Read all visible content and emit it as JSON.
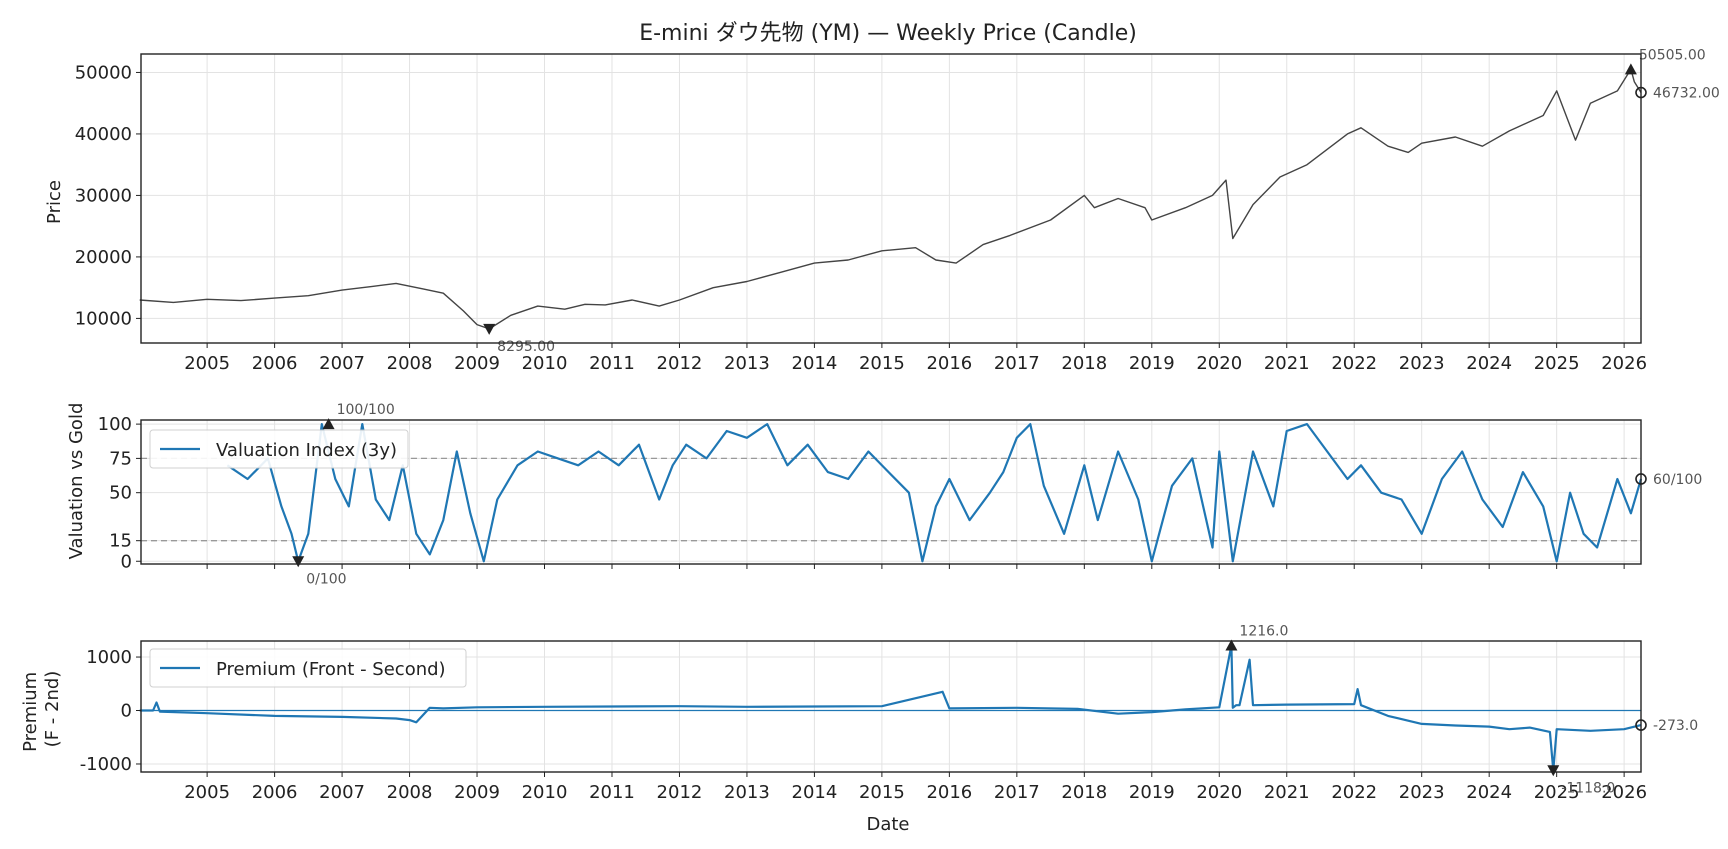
{
  "chart_data": [
    {
      "type": "line",
      "title": "E-mini ダウ先物 (YM) — Weekly Price (Candle)",
      "xlabel": "",
      "ylabel": "Price",
      "xlim": [
        2004.02,
        2026.25
      ],
      "ylim": [
        6000,
        53000
      ],
      "yticks": [
        10000,
        20000,
        30000,
        40000,
        50000
      ],
      "xticks": [
        "2005",
        "2006",
        "2007",
        "2008",
        "2009",
        "2010",
        "2011",
        "2012",
        "2013",
        "2014",
        "2015",
        "2016",
        "2017",
        "2018",
        "2019",
        "2020",
        "2021",
        "2022",
        "2023",
        "2024",
        "2025",
        "2026"
      ],
      "grid": true,
      "series": [
        {
          "color": "#444444",
          "x": [
            2004.0,
            2004.5,
            2005.0,
            2005.5,
            2006.0,
            2006.5,
            2007.0,
            2007.45,
            2007.8,
            2008.2,
            2008.5,
            2008.8,
            2009.0,
            2009.18,
            2009.5,
            2009.9,
            2010.3,
            2010.6,
            2010.9,
            2011.3,
            2011.7,
            2012.0,
            2012.5,
            2013.0,
            2013.5,
            2014.0,
            2014.5,
            2015.0,
            2015.5,
            2015.8,
            2016.1,
            2016.5,
            2016.9,
            2017.5,
            2018.0,
            2018.15,
            2018.5,
            2018.9,
            2019.0,
            2019.5,
            2019.9,
            2020.1,
            2020.2,
            2020.5,
            2020.9,
            2021.3,
            2021.9,
            2022.1,
            2022.5,
            2022.8,
            2023.0,
            2023.5,
            2023.9,
            2024.3,
            2024.8,
            2025.0,
            2025.28,
            2025.5,
            2025.9,
            2026.1,
            2026.15,
            2026.25
          ],
          "y": [
            13000,
            12600,
            13100,
            12900,
            13300,
            13700,
            14600,
            15200,
            15700,
            14800,
            14100,
            11200,
            9000,
            8295,
            10500,
            12000,
            11500,
            12300,
            12200,
            13000,
            12000,
            13000,
            15000,
            16000,
            17500,
            19000,
            19500,
            21000,
            21500,
            19500,
            19000,
            22000,
            23500,
            26000,
            30000,
            28000,
            29500,
            28000,
            26000,
            28000,
            30000,
            32500,
            23000,
            28500,
            33000,
            35000,
            40000,
            41000,
            38000,
            37000,
            38500,
            39500,
            38000,
            40500,
            43000,
            47000,
            39000,
            45000,
            47000,
            50505,
            48500,
            46732
          ]
        }
      ],
      "annotations": [
        {
          "label": "50505.00",
          "x": 2026.1,
          "y": 50505,
          "marker": "max"
        },
        {
          "label": "46732.00",
          "x": 2026.25,
          "y": 46732,
          "marker": "last"
        },
        {
          "label": "8295.00",
          "x": 2009.18,
          "y": 8295,
          "marker": "min"
        }
      ]
    },
    {
      "type": "line",
      "ylabel": "Valuation vs Gold",
      "xlim": [
        2004.02,
        2026.25
      ],
      "ylim": [
        -2,
        103
      ],
      "yticks": [
        0,
        15,
        50,
        75,
        100
      ],
      "reference_lines": [
        75,
        15
      ],
      "grid": true,
      "legend": "upper-left",
      "series": [
        {
          "name": "Valuation Index (3y)",
          "color": "#1f77b4",
          "x": [
            2005.3,
            2005.6,
            2005.9,
            2006.1,
            2006.25,
            2006.35,
            2006.5,
            2006.7,
            2006.9,
            2007.1,
            2007.3,
            2007.5,
            2007.7,
            2007.9,
            2008.1,
            2008.3,
            2008.5,
            2008.7,
            2008.9,
            2009.1,
            2009.3,
            2009.6,
            2009.9,
            2010.2,
            2010.5,
            2010.8,
            2011.1,
            2011.4,
            2011.7,
            2011.9,
            2012.1,
            2012.4,
            2012.7,
            2013.0,
            2013.3,
            2013.6,
            2013.9,
            2014.2,
            2014.5,
            2014.8,
            2015.1,
            2015.4,
            2015.6,
            2015.8,
            2016.0,
            2016.3,
            2016.6,
            2016.8,
            2017.0,
            2017.2,
            2017.4,
            2017.7,
            2018.0,
            2018.2,
            2018.5,
            2018.8,
            2019.0,
            2019.3,
            2019.6,
            2019.9,
            2020.0,
            2020.2,
            2020.5,
            2020.8,
            2021.0,
            2021.3,
            2021.6,
            2021.9,
            2022.1,
            2022.4,
            2022.7,
            2023.0,
            2023.3,
            2023.6,
            2023.9,
            2024.2,
            2024.5,
            2024.8,
            2025.0,
            2025.2,
            2025.4,
            2025.6,
            2025.9,
            2026.1,
            2026.25
          ],
          "y": [
            70,
            60,
            75,
            40,
            20,
            0,
            20,
            100,
            60,
            40,
            100,
            45,
            30,
            70,
            20,
            5,
            30,
            80,
            35,
            0,
            45,
            70,
            80,
            75,
            70,
            80,
            70,
            85,
            45,
            70,
            85,
            75,
            95,
            90,
            100,
            70,
            85,
            65,
            60,
            80,
            65,
            50,
            0,
            40,
            60,
            30,
            50,
            65,
            90,
            100,
            55,
            20,
            70,
            30,
            80,
            45,
            0,
            55,
            75,
            10,
            80,
            0,
            80,
            40,
            95,
            100,
            80,
            60,
            70,
            50,
            45,
            20,
            60,
            80,
            45,
            25,
            65,
            40,
            0,
            50,
            20,
            10,
            60,
            35,
            60
          ]
        }
      ],
      "annotations": [
        {
          "label": "100/100",
          "x": 2006.8,
          "y": 100,
          "marker": "max"
        },
        {
          "label": "0/100",
          "x": 2006.35,
          "y": 0,
          "marker": "min"
        },
        {
          "label": "60/100",
          "x": 2026.25,
          "y": 60,
          "marker": "last"
        }
      ]
    },
    {
      "type": "line",
      "ylabel": "Premium\n(F - 2nd)",
      "xlabel": "Date",
      "xlim": [
        2004.02,
        2026.25
      ],
      "ylim": [
        -1150,
        1300
      ],
      "yticks": [
        -1000,
        0,
        1000
      ],
      "xticks": [
        "2005",
        "2006",
        "2007",
        "2008",
        "2009",
        "2010",
        "2011",
        "2012",
        "2013",
        "2014",
        "2015",
        "2016",
        "2017",
        "2018",
        "2019",
        "2020",
        "2021",
        "2022",
        "2023",
        "2024",
        "2025",
        "2026"
      ],
      "grid": true,
      "legend": "upper-left",
      "series": [
        {
          "name": "Premium (Front - Second)",
          "color": "#1f77b4",
          "x": [
            2004.0,
            2004.2,
            2004.25,
            2004.3,
            2005.0,
            2006.0,
            2007.0,
            2007.8,
            2008.0,
            2008.1,
            2008.3,
            2008.5,
            2009.0,
            2010.0,
            2011.0,
            2012.0,
            2013.0,
            2014.0,
            2015.0,
            2015.9,
            2016.0,
            2017.0,
            2017.9,
            2018.5,
            2019.0,
            2019.5,
            2020.0,
            2020.18,
            2020.2,
            2020.25,
            2020.3,
            2020.45,
            2020.5,
            2021.0,
            2022.0,
            2022.05,
            2022.1,
            2022.5,
            2023.0,
            2023.5,
            2024.0,
            2024.3,
            2024.6,
            2024.9,
            2024.95,
            2025.0,
            2025.5,
            2026.0,
            2026.25
          ],
          "y": [
            0,
            0,
            150,
            -20,
            -50,
            -100,
            -120,
            -150,
            -180,
            -220,
            50,
            40,
            60,
            70,
            75,
            80,
            70,
            75,
            80,
            350,
            40,
            50,
            30,
            -60,
            -30,
            20,
            60,
            1216,
            50,
            100,
            100,
            950,
            100,
            110,
            120,
            400,
            100,
            -100,
            -250,
            -280,
            -300,
            -350,
            -320,
            -400,
            -1118,
            -350,
            -380,
            -350,
            -273
          ]
        }
      ],
      "annotations": [
        {
          "label": "1216.0",
          "x": 2020.18,
          "y": 1216,
          "marker": "max"
        },
        {
          "label": "-1118.0",
          "x": 2024.95,
          "y": -1118,
          "marker": "min"
        },
        {
          "label": "-273.0",
          "x": 2026.25,
          "y": -273,
          "marker": "last"
        }
      ]
    }
  ]
}
